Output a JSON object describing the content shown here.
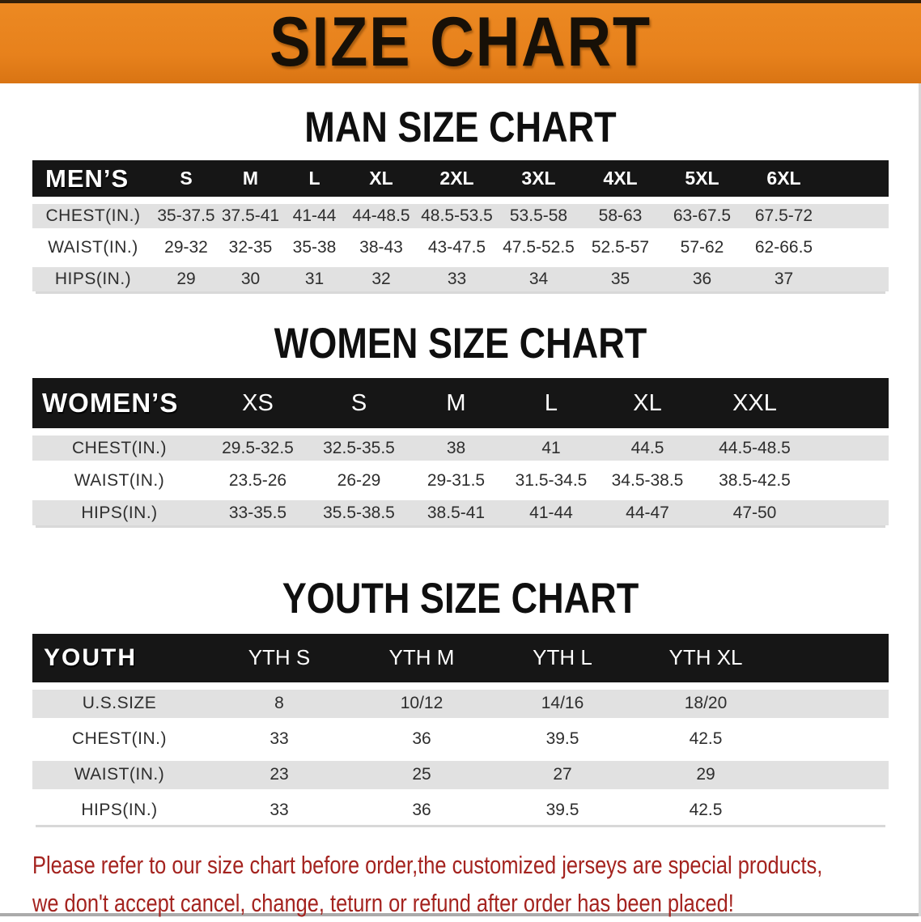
{
  "banner": {
    "title": "SIZE CHART"
  },
  "colors": {
    "banner_bg": "#E7811C",
    "banner_top_edge": "#33200A",
    "header_band": "#161616",
    "stripe_gray": "#E1E1E1",
    "footer_text": "#A4231F",
    "heading_text": "#0F0F0F"
  },
  "sections": [
    {
      "heading": "MAN SIZE CHART",
      "table": {
        "header_label": "MEN’S",
        "columns": [
          "S",
          "M",
          "L",
          "XL",
          "2XL",
          "3XL",
          "4XL",
          "5XL",
          "6XL"
        ],
        "rows": [
          {
            "label": "CHEST(IN.)",
            "values": [
              "35-37.5",
              "37.5-41",
              "41-44",
              "44-48.5",
              "48.5-53.5",
              "53.5-58",
              "58-63",
              "63-67.5",
              "67.5-72"
            ]
          },
          {
            "label": "WAIST(IN.)",
            "values": [
              "29-32",
              "32-35",
              "35-38",
              "38-43",
              "43-47.5",
              "47.5-52.5",
              "52.5-57",
              "57-62",
              "62-66.5"
            ]
          },
          {
            "label": "HIPS(IN.)",
            "values": [
              "29",
              "30",
              "31",
              "32",
              "33",
              "34",
              "35",
              "36",
              "37"
            ]
          }
        ]
      }
    },
    {
      "heading": "WOMEN SIZE CHART",
      "table": {
        "header_label": "WOMEN’S",
        "columns": [
          "XS",
          "S",
          "M",
          "L",
          "XL",
          "XXL"
        ],
        "rows": [
          {
            "label": "CHEST(IN.)",
            "values": [
              "29.5-32.5",
              "32.5-35.5",
              "38",
              "41",
              "44.5",
              "44.5-48.5"
            ]
          },
          {
            "label": "WAIST(IN.)",
            "values": [
              "23.5-26",
              "26-29",
              "29-31.5",
              "31.5-34.5",
              "34.5-38.5",
              "38.5-42.5"
            ]
          },
          {
            "label": "HIPS(IN.)",
            "values": [
              "33-35.5",
              "35.5-38.5",
              "38.5-41",
              "41-44",
              "44-47",
              "47-50"
            ]
          }
        ]
      }
    },
    {
      "heading": "YOUTH SIZE CHART",
      "table": {
        "header_label": "YOUTH",
        "columns": [
          "YTH S",
          "YTH M",
          "YTH L",
          "YTH XL"
        ],
        "rows": [
          {
            "label": "U.S.SIZE",
            "values": [
              "8",
              "10/12",
              "14/16",
              "18/20"
            ]
          },
          {
            "label": "CHEST(IN.)",
            "values": [
              "33",
              "36",
              "39.5",
              "42.5"
            ]
          },
          {
            "label": "WAIST(IN.)",
            "values": [
              "23",
              "25",
              "27",
              "29"
            ]
          },
          {
            "label": "HIPS(IN.)",
            "values": [
              "33",
              "36",
              "39.5",
              "42.5"
            ]
          }
        ]
      }
    }
  ],
  "footer": {
    "line1": "Please refer to our size chart before order,the customized jerseys are special products,",
    "line2": "we don't accept cancel, change, teturn or refund after order has been placed!"
  }
}
